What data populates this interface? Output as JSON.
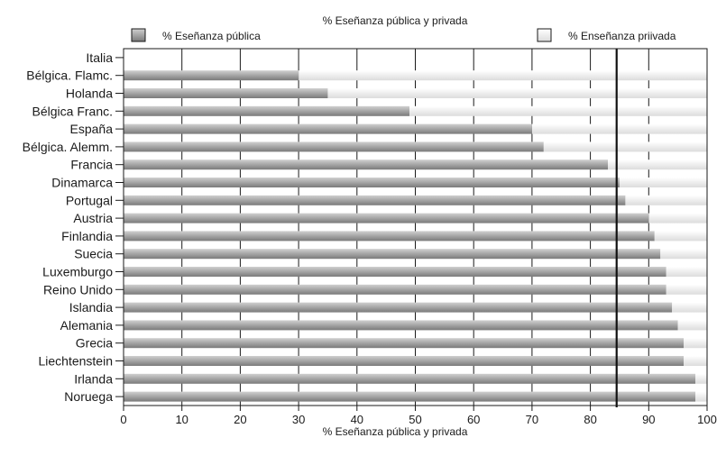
{
  "chart_data": {
    "type": "bar",
    "orientation": "horizontal",
    "stacked": true,
    "title": "% Eseñanza pública y privada",
    "xlabel": "% Eseñanza pública y privada",
    "ylabel": "",
    "xlim": [
      0,
      100
    ],
    "xticks": [
      0,
      10,
      20,
      30,
      40,
      50,
      60,
      70,
      80,
      90,
      100
    ],
    "grid": true,
    "legend_position": "top",
    "reference_line": 84.5,
    "categories": [
      "Italia",
      "Bélgica. Flamc.",
      "Holanda",
      "Bélgica Franc.",
      "España",
      "Bélgica. Alemm.",
      "Francia",
      "Dinamarca",
      "Portugal",
      "Austria",
      "Finlandia",
      "Suecia",
      "Luxemburgo",
      "Reino Unido",
      "Islandia",
      "Alemania",
      "Grecia",
      "Liechtenstein",
      "Irlanda",
      "Noruega"
    ],
    "series": [
      {
        "name": "% Eseñanza pública",
        "color": "#9a9a9a",
        "values": [
          0,
          30,
          35,
          49,
          70,
          72,
          83,
          85,
          86,
          90,
          91,
          92,
          93,
          93,
          94,
          95,
          96,
          96,
          98,
          98
        ]
      },
      {
        "name": "% Enseñanza priivada",
        "color": "#ececec",
        "values": [
          0,
          70,
          65,
          51,
          30,
          28,
          17,
          15,
          14,
          10,
          9,
          8,
          7,
          7,
          6,
          5,
          4,
          4,
          2,
          2
        ]
      }
    ]
  }
}
